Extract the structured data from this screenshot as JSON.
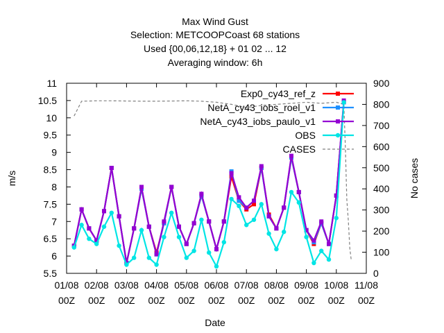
{
  "chart_data": {
    "type": "line",
    "title_lines": [
      "Max Wind Gust",
      "Selection: METCOOPCoast     68 stations",
      "Used {00,06,12,18} + 01 02 ... 12",
      "Averaging window:  6h"
    ],
    "xlabel": "Date",
    "ylabel": "m/s",
    "y2label": "No cases",
    "ylim": [
      5.5,
      11
    ],
    "y2lim": [
      0,
      900
    ],
    "y_ticks": [
      "5.5",
      "6",
      "6.5",
      "7",
      "7.5",
      "8",
      "8.5",
      "9",
      "9.5",
      "10",
      "10.5",
      "11"
    ],
    "y2_ticks": [
      "0",
      "100",
      "200",
      "300",
      "400",
      "500",
      "600",
      "700",
      "800",
      "900"
    ],
    "x_ticks": [
      {
        "day": 0,
        "l1": "01/08",
        "l2": "00Z"
      },
      {
        "day": 1,
        "l1": "02/08",
        "l2": "00Z"
      },
      {
        "day": 2,
        "l1": "03/08",
        "l2": "00Z"
      },
      {
        "day": 3,
        "l1": "04/08",
        "l2": "00Z"
      },
      {
        "day": 4,
        "l1": "05/08",
        "l2": "00Z"
      },
      {
        "day": 5,
        "l1": "06/08",
        "l2": "00Z"
      },
      {
        "day": 6,
        "l1": "07/08",
        "l2": "00Z"
      },
      {
        "day": 7,
        "l1": "08/08",
        "l2": "00Z"
      },
      {
        "day": 8,
        "l1": "09/08",
        "l2": "00Z"
      },
      {
        "day": 9,
        "l1": "10/08",
        "l2": "00Z"
      },
      {
        "day": 10,
        "l1": "11/08",
        "l2": "00Z"
      }
    ],
    "xlim": [
      0,
      10
    ],
    "legend_position": "top-right",
    "grid": false,
    "x_days": [
      0.25,
      0.5,
      0.75,
      1.0,
      1.25,
      1.5,
      1.75,
      2.0,
      2.25,
      2.5,
      2.75,
      3.0,
      3.25,
      3.5,
      3.75,
      4.0,
      4.25,
      4.5,
      4.75,
      5.0,
      5.25,
      5.5,
      5.75,
      6.0,
      6.25,
      6.5,
      6.75,
      7.0,
      7.25,
      7.5,
      7.75,
      8.0,
      8.25,
      8.5,
      8.75,
      9.0,
      9.25,
      9.5,
      9.75,
      10.0
    ],
    "series": [
      {
        "name": "Exp0_cy43_ref_z",
        "color": "#ff0000",
        "values": [
          6.3,
          7.35,
          6.8,
          6.45,
          7.3,
          8.55,
          7.15,
          5.8,
          6.8,
          7.95,
          6.85,
          6.1,
          6.95,
          8.0,
          6.85,
          6.35,
          6.95,
          7.75,
          7.0,
          6.2,
          7.0,
          8.3,
          7.6,
          7.35,
          7.5,
          8.55,
          7.2,
          6.8,
          7.4,
          8.85,
          7.85,
          6.75,
          6.35,
          6.95,
          6.35,
          7.75,
          10.45,
          null,
          null,
          null
        ]
      },
      {
        "name": "NetA_cy43_iobs_roel_v1",
        "color": "#1e90ff",
        "values": [
          6.3,
          7.35,
          6.8,
          6.45,
          7.3,
          8.55,
          7.15,
          5.8,
          6.8,
          7.95,
          6.85,
          6.05,
          6.95,
          8.0,
          6.85,
          6.35,
          6.95,
          7.75,
          7.0,
          6.2,
          7.0,
          8.45,
          7.6,
          7.4,
          7.6,
          8.55,
          7.15,
          6.8,
          7.4,
          8.85,
          7.85,
          6.75,
          6.4,
          6.95,
          6.35,
          7.75,
          10.45,
          null,
          null,
          null
        ]
      },
      {
        "name": "NetA_cy43_iobs_paulo_v1",
        "color": "#9400d3",
        "values": [
          6.3,
          7.35,
          6.8,
          6.45,
          7.3,
          8.55,
          7.15,
          5.8,
          6.8,
          8.0,
          6.85,
          6.05,
          7.0,
          8.0,
          6.85,
          6.35,
          6.95,
          7.8,
          7.0,
          6.2,
          7.0,
          8.4,
          7.7,
          7.4,
          7.6,
          8.6,
          7.15,
          6.8,
          7.4,
          8.9,
          7.85,
          6.75,
          6.45,
          7.0,
          6.35,
          7.75,
          10.5,
          null,
          null,
          null
        ]
      },
      {
        "name": "OBS",
        "color": "#00e5e5",
        "values": [
          6.25,
          6.9,
          6.5,
          6.35,
          6.85,
          7.25,
          6.3,
          5.75,
          5.95,
          6.75,
          5.95,
          5.75,
          6.55,
          7.25,
          6.55,
          5.95,
          6.15,
          7.05,
          6.1,
          5.7,
          6.4,
          7.65,
          7.45,
          6.9,
          7.05,
          7.5,
          6.65,
          6.2,
          6.7,
          7.85,
          7.55,
          6.55,
          5.8,
          6.15,
          5.9,
          7.1,
          10.45,
          null,
          null,
          null
        ]
      }
    ],
    "cases_series": {
      "name": "CASES",
      "color": "#808080",
      "x": [
        0.25,
        0.5,
        1.0,
        1.5,
        2.0,
        2.5,
        3.0,
        3.5,
        4.0,
        4.5,
        5.0,
        5.5,
        6.0,
        6.5,
        7.0,
        7.5,
        8.0,
        8.5,
        9.0,
        9.25,
        9.3,
        9.35,
        9.4,
        9.45,
        9.5
      ],
      "values": [
        745,
        815,
        817,
        817,
        816,
        815,
        815,
        816,
        817,
        815,
        810,
        800,
        785,
        795,
        800,
        805,
        810,
        805,
        810,
        800,
        600,
        350,
        250,
        120,
        60
      ]
    }
  }
}
